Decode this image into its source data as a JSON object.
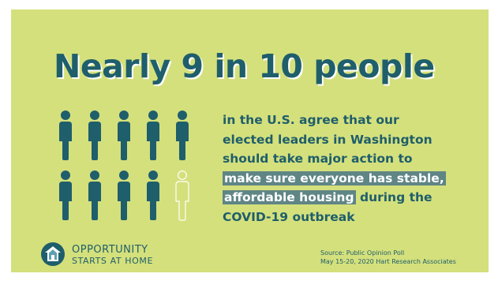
{
  "headline": "Nearly 9 in 10 people",
  "statement": {
    "line1": "in the U.S. agree that our",
    "line2": "elected leaders in Washington",
    "line3": "should take major action to",
    "highlight1": "make sure everyone has stable,",
    "highlight2": "affordable housing",
    "tail": " during the",
    "line6": "COVID-19 outbreak"
  },
  "people_icons": {
    "total": 10,
    "filled": 9,
    "icon": "person-icon"
  },
  "logo": {
    "line1": "OPPORTUNITY",
    "line2": "STARTS AT HOME",
    "icon": "house-logo-icon"
  },
  "source": {
    "line1": "Source: Public Opinion Poll",
    "line2": "May 15-20, 2020 Hart Research Associates"
  },
  "colors": {
    "background": "#d4e07c",
    "primary": "#1f5e6b",
    "highlight": "#5f8585",
    "icon_outline": "#ffffff"
  }
}
